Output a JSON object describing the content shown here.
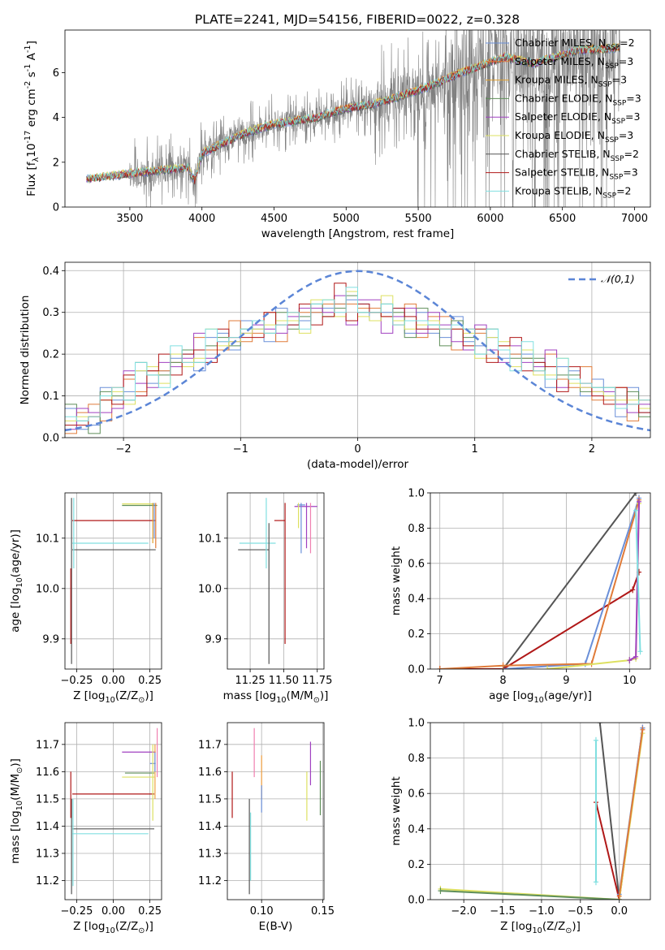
{
  "title": "PLATE=2241, MJD=54156, FIBERID=0022, z=0.328",
  "colors": {
    "Chabrier MILES": "#6a8fd8",
    "Salpeter MILES": "#e07b39",
    "Kroupa MILES": "#e0a030",
    "Chabrier ELODIE": "#5f8f5a",
    "Salpeter ELODIE": "#a040c0",
    "Kroupa ELODIE": "#dde060",
    "Chabrier STELIB": "#555555",
    "Salpeter STELIB": "#b01818",
    "Kroupa STELIB": "#80dfe0",
    "data": "#808080",
    "gauss": "#5b85d6",
    "pink": "#f080b0",
    "orange2": "#f0a040"
  },
  "chart_data": [
    {
      "id": "spectrum",
      "type": "line",
      "xlabel": "wavelength [Angstrom, rest frame]",
      "ylabel": "Flux [f$_\\lambda$10$^{-17}$ erg cm$^{-2}$ s$^{-1}$ A$^{-1}$]",
      "xlim": [
        3050,
        7110
      ],
      "ylim": [
        0,
        7.9
      ],
      "xticks": [
        3500,
        4000,
        4500,
        5000,
        5500,
        6000,
        6500,
        7000
      ],
      "yticks": [
        0,
        2,
        4,
        6
      ],
      "legend_position": "right",
      "legend": [
        {
          "name": "Chabrier MILES, N$_{SSP}$=2"
        },
        {
          "name": "Salpeter MILES, N$_{SSP}$=3"
        },
        {
          "name": "Kroupa MILES, N$_{SSP}$=3"
        },
        {
          "name": "Chabrier ELODIE, N$_{SSP}$=3"
        },
        {
          "name": "Salpeter ELODIE, N$_{SSP}$=3"
        },
        {
          "name": "Kroupa ELODIE, N$_{SSP}$=3"
        },
        {
          "name": "Chabrier STELIB, N$_{SSP}$=2"
        },
        {
          "name": "Salpeter STELIB, N$_{SSP}$=3"
        },
        {
          "name": "Kroupa STELIB, N$_{SSP}$=2"
        }
      ],
      "continuum": {
        "x": [
          3200,
          3500,
          3900,
          3950,
          4000,
          4100,
          4300,
          4500,
          4800,
          5000,
          5200,
          5500,
          5800,
          6100,
          6300,
          6600,
          6900
        ],
        "y": [
          1.25,
          1.5,
          1.75,
          1.2,
          2.4,
          2.7,
          3.3,
          3.7,
          4.0,
          4.4,
          4.6,
          5.2,
          6.0,
          6.7,
          6.4,
          7.0,
          7.1
        ]
      }
    },
    {
      "id": "residuals",
      "type": "step",
      "xlabel": "(data-model)/error",
      "ylabel": "Normed distribution",
      "xlim": [
        -2.5,
        2.5
      ],
      "ylim": [
        0,
        0.42
      ],
      "xticks": [
        -2,
        -1,
        0,
        1,
        2
      ],
      "yticks": [
        0.0,
        0.1,
        0.2,
        0.3,
        0.4
      ],
      "gauss_label": "$\\mathcal{N}(0,1)$",
      "envelope": [
        0.04,
        0.04,
        0.05,
        0.08,
        0.1,
        0.12,
        0.14,
        0.15,
        0.16,
        0.18,
        0.19,
        0.2,
        0.22,
        0.23,
        0.24,
        0.25,
        0.26,
        0.27,
        0.27,
        0.28,
        0.29,
        0.3,
        0.31,
        0.32,
        0.32,
        0.31,
        0.3,
        0.3,
        0.29,
        0.28,
        0.27,
        0.27,
        0.26,
        0.25,
        0.24,
        0.23,
        0.22,
        0.21,
        0.2,
        0.19,
        0.17,
        0.16,
        0.15,
        0.14,
        0.13,
        0.11,
        0.1,
        0.09,
        0.08,
        0.07
      ],
      "series": [
        {
          "color_key": "Chabrier MILES",
          "offset": [
            0.01,
            -0.02,
            0.0,
            0.02,
            -0.01,
            0.01,
            0.0,
            -0.02,
            0.02,
            -0.01
          ]
        },
        {
          "color_key": "Salpeter MILES",
          "offset": [
            -0.01,
            0.02,
            0.01,
            -0.02,
            0.02,
            0.0,
            -0.01,
            0.01,
            -0.02,
            0.02
          ]
        },
        {
          "color_key": "Chabrier ELODIE",
          "offset": [
            0.02,
            0.0,
            -0.02,
            0.01,
            0.0,
            -0.01,
            0.02,
            0.0,
            0.01,
            -0.02
          ]
        },
        {
          "color_key": "Salpeter ELODIE",
          "offset": [
            0.0,
            0.03,
            -0.01,
            0.0,
            -0.03,
            0.02,
            0.01,
            -0.03,
            0.0,
            0.01
          ]
        },
        {
          "color_key": "Kroupa ELODIE",
          "offset": [
            -0.02,
            0.01,
            0.02,
            -0.01,
            0.01,
            -0.02,
            0.0,
            0.02,
            -0.01,
            0.0
          ]
        },
        {
          "color_key": "Salpeter STELIB",
          "offset": [
            0.01,
            -0.01,
            -0.02,
            0.03,
            -0.02,
            0.01,
            -0.02,
            0.01,
            0.02,
            -0.01
          ]
        },
        {
          "color_key": "Kroupa STELIB",
          "offset": [
            -0.01,
            0.0,
            0.02,
            0.0,
            0.02,
            -0.01,
            0.02,
            0.0,
            -0.02,
            0.02
          ]
        }
      ]
    },
    {
      "id": "age-vs-Z",
      "type": "errorbar",
      "xlabel": "Z [log$_{10}$(Z/Z$_\\odot$)]",
      "ylabel": "age  [log$_{10}$(age/yr)]",
      "xlim": [
        -0.33,
        0.33
      ],
      "ylim": [
        9.84,
        10.19
      ],
      "xticks": [
        -0.25,
        0.0,
        0.25
      ],
      "yticks": [
        9.9,
        10.0,
        10.1
      ],
      "hbars": [
        {
          "color_key": "Salpeter STELIB",
          "x0": -0.28,
          "x1": 0.29,
          "y": 10.135
        },
        {
          "color_key": "Kroupa STELIB",
          "x0": -0.28,
          "x1": 0.24,
          "y": 10.09
        },
        {
          "color_key": "Chabrier STELIB",
          "x0": -0.28,
          "x1": 0.29,
          "y": 10.077
        },
        {
          "color_key": "Chabrier ELODIE",
          "x0": 0.06,
          "x1": 0.3,
          "y": 10.165
        },
        {
          "color_key": "Kroupa ELODIE",
          "x0": 0.06,
          "x1": 0.28,
          "y": 10.168
        }
      ],
      "vbars": [
        {
          "color_key": "Chabrier STELIB",
          "x": -0.285,
          "y0": 9.85,
          "y1": 10.18
        },
        {
          "color_key": "Salpeter STELIB",
          "x": -0.29,
          "y0": 9.89,
          "y1": 10.04
        },
        {
          "color_key": "Kroupa STELIB",
          "x": -0.27,
          "y0": 10.04,
          "y1": 10.18
        },
        {
          "color_key": "Salpeter MILES",
          "x": 0.29,
          "y0": 10.08,
          "y1": 10.17
        },
        {
          "color_key": "Chabrier MILES",
          "x": 0.28,
          "y0": 10.1,
          "y1": 10.17
        },
        {
          "color_key": "Kroupa MILES",
          "x": 0.27,
          "y0": 10.09,
          "y1": 10.17
        }
      ]
    },
    {
      "id": "age-vs-mass",
      "type": "errorbar",
      "xlabel": "mass [log$_{10}$(M/M$_\\odot$)]",
      "xlim": [
        11.08,
        11.8
      ],
      "ylim": [
        9.84,
        10.19
      ],
      "xticks": [
        11.25,
        11.5,
        11.75
      ],
      "yticks": [
        9.9,
        10.0,
        10.1
      ],
      "hbars": [
        {
          "color_key": "Chabrier STELIB",
          "x0": 11.16,
          "x1": 11.39,
          "y": 10.077
        },
        {
          "color_key": "Kroupa STELIB",
          "x0": 11.17,
          "x1": 11.44,
          "y": 10.09
        },
        {
          "color_key": "Salpeter STELIB",
          "x0": 11.43,
          "x1": 11.51,
          "y": 10.135
        },
        {
          "color_key": "Salpeter ELODIE",
          "x0": 11.58,
          "x1": 11.75,
          "y": 10.163
        },
        {
          "color_key": "Chabrier MILES",
          "x0": 11.6,
          "x1": 11.66,
          "y": 10.166
        }
      ],
      "vbars": [
        {
          "color_key": "Chabrier STELIB",
          "x": 11.39,
          "y0": 9.85,
          "y1": 10.13
        },
        {
          "color_key": "Kroupa STELIB",
          "x": 11.37,
          "y0": 10.04,
          "y1": 10.18
        },
        {
          "color_key": "Salpeter STELIB",
          "x": 11.51,
          "y0": 9.89,
          "y1": 10.17
        },
        {
          "color_key": "Chabrier MILES",
          "x": 11.63,
          "y0": 10.07,
          "y1": 10.17
        },
        {
          "color_key": "Salpeter ELODIE",
          "x": 11.67,
          "y0": 10.08,
          "y1": 10.17
        },
        {
          "color_key": "Kroupa ELODIE",
          "x": 11.61,
          "y0": 10.12,
          "y1": 10.17
        },
        {
          "color_key": "pink",
          "x": 11.7,
          "y0": 10.07,
          "y1": 10.17
        }
      ]
    },
    {
      "id": "weight-vs-age",
      "type": "line",
      "xlabel": "age  [log$_{10}$(age/yr)]",
      "ylabel": "mass weight",
      "xlim": [
        6.85,
        10.33
      ],
      "ylim": [
        0,
        1.0
      ],
      "xticks": [
        7,
        8,
        9,
        10
      ],
      "yticks": [
        0.0,
        0.2,
        0.4,
        0.6,
        0.8,
        1.0
      ],
      "series": [
        {
          "color_key": "Chabrier STELIB",
          "x": [
            8.0,
            10.1
          ],
          "y": [
            0.0,
            1.0
          ]
        },
        {
          "color_key": "Salpeter STELIB",
          "x": [
            7.0,
            8.0,
            10.05,
            10.15
          ],
          "y": [
            0.0,
            0.0,
            0.45,
            0.55
          ]
        },
        {
          "color_key": "Chabrier MILES",
          "x": [
            8.0,
            9.3,
            10.15
          ],
          "y": [
            0.0,
            0.03,
            0.97
          ]
        },
        {
          "color_key": "Salpeter MILES",
          "x": [
            7.0,
            8.0,
            9.4,
            10.15
          ],
          "y": [
            0.0,
            0.02,
            0.03,
            0.96
          ]
        },
        {
          "color_key": "Kroupa ELODIE",
          "x": [
            8.7,
            10.0,
            10.1,
            10.15
          ],
          "y": [
            0.0,
            0.05,
            0.06,
            0.94
          ]
        },
        {
          "color_key": "Salpeter ELODIE",
          "x": [
            10.0,
            10.1,
            10.15
          ],
          "y": [
            0.05,
            0.07,
            0.95
          ]
        },
        {
          "color_key": "Kroupa STELIB",
          "x": [
            10.1,
            10.17
          ],
          "y": [
            0.9,
            0.1
          ]
        }
      ]
    },
    {
      "id": "mass-vs-Z",
      "type": "errorbar",
      "xlabel": "Z [log$_{10}$(Z/Z$_\\odot$)]",
      "ylabel": "mass [log$_{10}$(M/M$_\\odot$)]",
      "xlim": [
        -0.33,
        0.33
      ],
      "ylim": [
        11.13,
        11.78
      ],
      "xticks": [
        -0.25,
        0.0,
        0.25
      ],
      "yticks": [
        11.2,
        11.3,
        11.4,
        11.5,
        11.6,
        11.7
      ],
      "hbars": [
        {
          "color_key": "Salpeter ELODIE",
          "x0": 0.06,
          "x1": 0.29,
          "y": 11.672
        },
        {
          "color_key": "Chabrier MILES",
          "x0": 0.25,
          "x1": 0.29,
          "y": 11.63
        },
        {
          "color_key": "Chabrier ELODIE",
          "x0": 0.08,
          "x1": 0.28,
          "y": 11.595
        },
        {
          "color_key": "Kroupa ELODIE",
          "x0": 0.06,
          "x1": 0.28,
          "y": 11.58
        },
        {
          "color_key": "Salpeter STELIB",
          "x0": -0.28,
          "x1": 0.28,
          "y": 11.518
        },
        {
          "color_key": "Chabrier STELIB",
          "x0": -0.28,
          "x1": 0.28,
          "y": 11.39
        },
        {
          "color_key": "Kroupa STELIB",
          "x0": -0.28,
          "x1": 0.24,
          "y": 11.372
        }
      ],
      "vbars": [
        {
          "color_key": "Chabrier STELIB",
          "x": -0.285,
          "y0": 11.15,
          "y1": 11.5
        },
        {
          "color_key": "Salpeter STELIB",
          "x": -0.29,
          "y0": 11.43,
          "y1": 11.6
        },
        {
          "color_key": "Kroupa STELIB",
          "x": -0.275,
          "y0": 11.18,
          "y1": 11.5
        },
        {
          "color_key": "pink",
          "x": 0.3,
          "y0": 11.58,
          "y1": 11.76
        },
        {
          "color_key": "orange2",
          "x": 0.285,
          "y0": 11.5,
          "y1": 11.7
        },
        {
          "color_key": "Kroupa ELODIE",
          "x": 0.27,
          "y0": 11.42,
          "y1": 11.7
        },
        {
          "color_key": "Chabrier MILES",
          "x": 0.285,
          "y0": 11.6,
          "y1": 11.67
        }
      ]
    },
    {
      "id": "mass-vs-EBV",
      "type": "errorbar",
      "xlabel": "E(B-V)",
      "xlim": [
        0.072,
        0.151
      ],
      "ylim": [
        11.13,
        11.78
      ],
      "xticks": [
        0.1,
        0.15
      ],
      "yticks": [
        11.2,
        11.3,
        11.4,
        11.5,
        11.6,
        11.7
      ],
      "vbars": [
        {
          "color_key": "Salpeter STELIB",
          "x": 0.076,
          "y0": 11.43,
          "y1": 11.6
        },
        {
          "color_key": "Chabrier STELIB",
          "x": 0.09,
          "y0": 11.15,
          "y1": 11.5
        },
        {
          "color_key": "Kroupa STELIB",
          "x": 0.091,
          "y0": 11.2,
          "y1": 11.45
        },
        {
          "color_key": "pink",
          "x": 0.094,
          "y0": 11.58,
          "y1": 11.76
        },
        {
          "color_key": "orange2",
          "x": 0.1,
          "y0": 11.5,
          "y1": 11.66
        },
        {
          "color_key": "Chabrier MILES",
          "x": 0.1,
          "y0": 11.45,
          "y1": 11.55
        },
        {
          "color_key": "Kroupa ELODIE",
          "x": 0.137,
          "y0": 11.42,
          "y1": 11.6
        },
        {
          "color_key": "Salpeter ELODIE",
          "x": 0.14,
          "y0": 11.55,
          "y1": 11.71
        },
        {
          "color_key": "Chabrier ELODIE",
          "x": 0.148,
          "y0": 11.44,
          "y1": 11.64
        }
      ]
    },
    {
      "id": "weight-vs-Z",
      "type": "line",
      "xlabel": "Z [log$_{10}$(Z/Z$_\\odot$)]",
      "ylabel": "mass weight",
      "xlim": [
        -2.43,
        0.4
      ],
      "ylim": [
        0,
        1.0
      ],
      "xticks": [
        -2.0,
        -1.5,
        -1.0,
        -0.5,
        0.0
      ],
      "yticks": [
        0.0,
        0.2,
        0.4,
        0.6,
        0.8,
        1.0
      ],
      "series": [
        {
          "color_key": "Chabrier STELIB",
          "x": [
            -0.25,
            0.0
          ],
          "y": [
            1.0,
            0.0
          ]
        },
        {
          "color_key": "Salpeter STELIB",
          "x": [
            -0.3,
            0.0,
            0.3
          ],
          "y": [
            0.55,
            0.0,
            0.97
          ]
        },
        {
          "color_key": "Kroupa STELIB",
          "x": [
            -0.3,
            -0.3
          ],
          "y": [
            0.9,
            0.1
          ]
        },
        {
          "color_key": "Kroupa ELODIE",
          "x": [
            -2.3,
            0.0,
            0.3
          ],
          "y": [
            0.06,
            0.0,
            0.94
          ]
        },
        {
          "color_key": "Chabrier ELODIE",
          "x": [
            -2.3,
            0.0
          ],
          "y": [
            0.05,
            0.0
          ]
        },
        {
          "color_key": "Chabrier MILES",
          "x": [
            0.0,
            0.3
          ],
          "y": [
            0.03,
            0.97
          ]
        },
        {
          "color_key": "Salpeter MILES",
          "x": [
            0.0,
            0.3
          ],
          "y": [
            0.02,
            0.96
          ]
        }
      ]
    }
  ]
}
